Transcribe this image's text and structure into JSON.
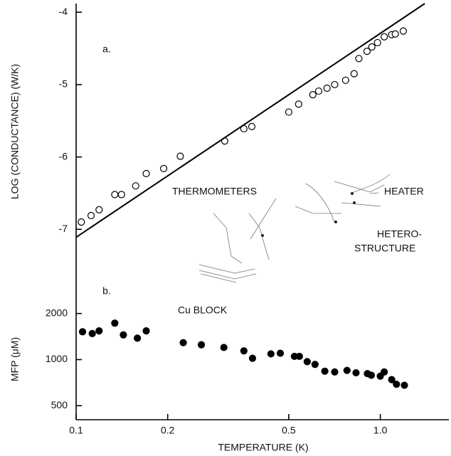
{
  "chart_data": [
    {
      "type": "scatter",
      "panel_label": "a.",
      "ylabel": "LOG (CONDUCTANCE) (W/K)",
      "xscale": "log",
      "xlim": [
        0.1,
        1.68
      ],
      "ylim": [
        -7.39,
        -3.88
      ],
      "yticks": [
        -4,
        -5,
        -6,
        -7
      ],
      "series": [
        {
          "mode": "markers",
          "marker": "open",
          "color": "#000000",
          "x": [
            0.104,
            0.112,
            0.119,
            0.134,
            0.141,
            0.157,
            0.17,
            0.194,
            0.22,
            0.308,
            0.356,
            0.378,
            0.5,
            0.539,
            0.6,
            0.627,
            0.668,
            0.708,
            0.769,
            0.82,
            0.85,
            0.904,
            0.938,
            0.979,
            1.03,
            1.09,
            1.12,
            1.19
          ],
          "values": [
            -6.9,
            -6.81,
            -6.73,
            -6.52,
            -6.52,
            -6.4,
            -6.23,
            -6.16,
            -5.99,
            -5.78,
            -5.61,
            -5.58,
            -5.38,
            -5.27,
            -5.14,
            -5.09,
            -5.05,
            -5.0,
            -4.94,
            -4.85,
            -4.64,
            -4.54,
            -4.48,
            -4.42,
            -4.34,
            -4.31,
            -4.3,
            -4.26
          ]
        },
        {
          "mode": "line",
          "color": "#000000",
          "x": [
            0.1,
            1.4
          ],
          "values": [
            -7.11,
            -3.88
          ]
        }
      ],
      "annotations": [
        "THERMOMETERS",
        "HEATER",
        "HETERO-",
        "STRUCTURE"
      ]
    },
    {
      "type": "scatter",
      "panel_label": "b.",
      "ylabel": "MFP (μM)",
      "xlabel": "TEMPERATURE (K)",
      "xscale": "log",
      "yscale": "log",
      "xlim": [
        0.1,
        1.68
      ],
      "ylim": [
        405,
        4640
      ],
      "xticks": [
        0.1,
        0.2,
        0.5,
        {
          "value": 1,
          "label": "1.0"
        }
      ],
      "yticks": [
        2000,
        1000,
        500
      ],
      "series": [
        {
          "mode": "markers",
          "marker": "filled",
          "color": "#000000",
          "x": [
            0.105,
            0.113,
            0.119,
            0.134,
            0.143,
            0.159,
            0.17,
            0.225,
            0.258,
            0.306,
            0.356,
            0.38,
            0.437,
            0.469,
            0.522,
            0.542,
            0.575,
            0.61,
            0.657,
            0.708,
            0.777,
            0.832,
            0.907,
            0.934,
            1.0,
            1.03,
            1.09,
            1.13,
            1.2
          ],
          "values": [
            1520,
            1480,
            1540,
            1730,
            1450,
            1380,
            1540,
            1290,
            1250,
            1200,
            1140,
            1020,
            1090,
            1100,
            1050,
            1050,
            970,
            930,
            840,
            830,
            850,
            820,
            810,
            790,
            780,
            830,
            740,
            690,
            680
          ]
        }
      ],
      "annotations": [
        "Cu BLOCK"
      ]
    }
  ]
}
